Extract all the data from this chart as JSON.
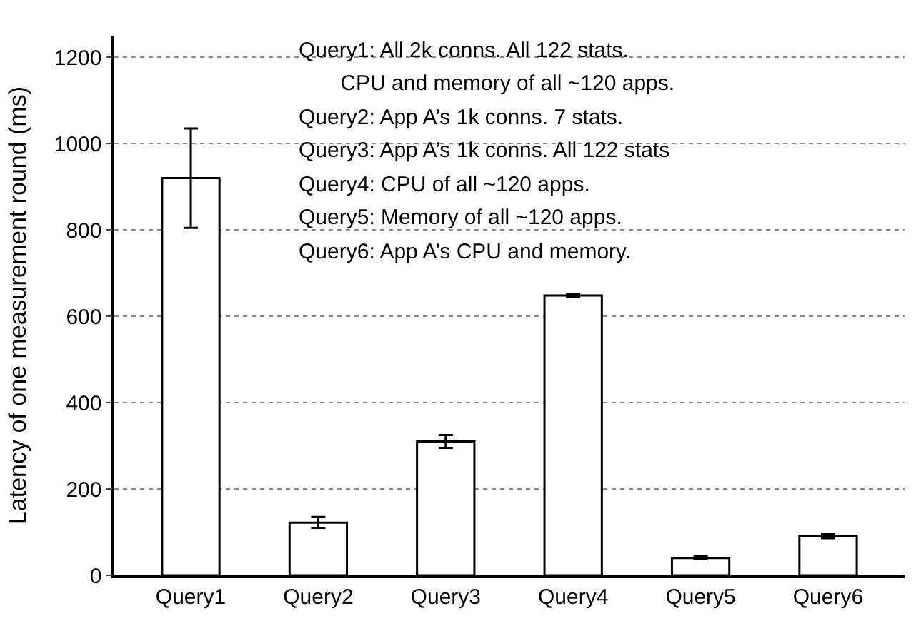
{
  "chart_data": {
    "type": "bar",
    "ylabel": "Latency of one measurement round (ms)",
    "categories": [
      "Query1",
      "Query2",
      "Query3",
      "Query4",
      "Query5",
      "Query6"
    ],
    "values": [
      920,
      122,
      310,
      648,
      40,
      90
    ],
    "errors": [
      [
        805,
        1035
      ],
      [
        110,
        135
      ],
      [
        295,
        325
      ],
      [
        645,
        651
      ],
      [
        37,
        44
      ],
      [
        86,
        95
      ]
    ],
    "color": "#ffffff",
    "ylim": [
      0,
      1250
    ],
    "yticks": [
      0,
      200,
      400,
      600,
      800,
      1000,
      1200
    ],
    "grid": "y",
    "legend": false,
    "annotations": [
      "Query1: All 2k conns. All 122 stats.\nCPU and memory of all ~120 apps.",
      "Query2: App A’s 1k conns. 7 stats.",
      "Query3: App A’s 1k conns. All 122 stats",
      "Query4: CPU of all ~120 apps.",
      "Query5: Memory of all ~120 apps.",
      "Query6: App A’s CPU and memory."
    ]
  }
}
